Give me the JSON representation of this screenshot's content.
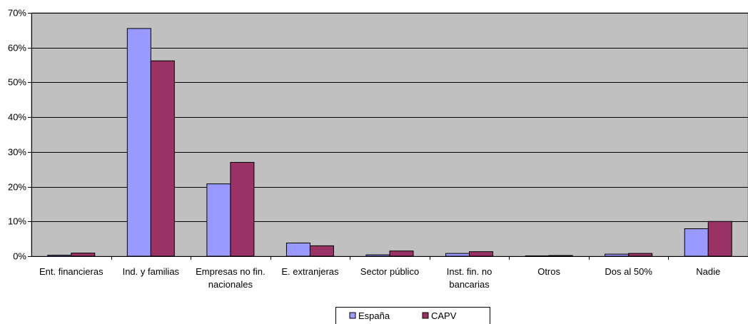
{
  "chart_data": {
    "type": "bar",
    "categories": [
      [
        "Ent. financieras"
      ],
      [
        "Ind. y familias"
      ],
      [
        "Empresas no fin.",
        "nacionales"
      ],
      [
        "E. extranjeras"
      ],
      [
        "Sector público"
      ],
      [
        "Inst. fin.  no",
        "bancarias"
      ],
      [
        "Otros"
      ],
      [
        "Dos al 50%"
      ],
      [
        "Nadie"
      ]
    ],
    "series": [
      {
        "name": "España",
        "color": "#9999ff",
        "values": [
          0.3,
          65.5,
          20.8,
          3.8,
          0.4,
          0.8,
          0.1,
          0.6,
          7.9
        ]
      },
      {
        "name": "CAPV",
        "color": "#993366",
        "values": [
          0.9,
          56.2,
          27.0,
          3.0,
          1.5,
          1.3,
          0.2,
          0.8,
          10.0
        ]
      }
    ],
    "y_ticks": [
      "0%",
      "10%",
      "20%",
      "30%",
      "40%",
      "50%",
      "60%",
      "70%"
    ],
    "ylim": [
      0,
      70
    ],
    "ytick_step": 10,
    "grid": true,
    "plot_background": "#c0c0c0",
    "legend_position": "bottom-center",
    "title": "",
    "xlabel": "",
    "ylabel": ""
  }
}
